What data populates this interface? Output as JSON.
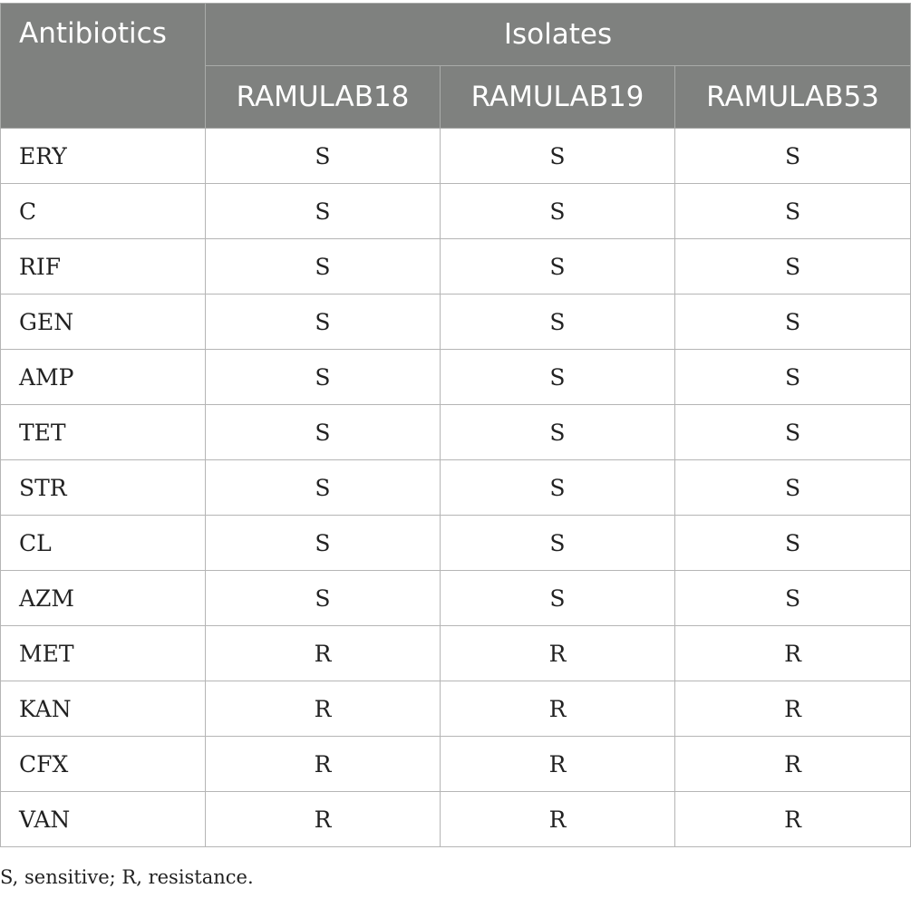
{
  "header": {
    "first_col": "Antibiotics",
    "group": "Isolates",
    "isolates": [
      "RAMULAB18",
      "RAMULAB19",
      "RAMULAB53"
    ]
  },
  "rows": [
    {
      "name": "ERY",
      "values": [
        "S",
        "S",
        "S"
      ]
    },
    {
      "name": "C",
      "values": [
        "S",
        "S",
        "S"
      ]
    },
    {
      "name": "RIF",
      "values": [
        "S",
        "S",
        "S"
      ]
    },
    {
      "name": "GEN",
      "values": [
        "S",
        "S",
        "S"
      ]
    },
    {
      "name": "AMP",
      "values": [
        "S",
        "S",
        "S"
      ]
    },
    {
      "name": "TET",
      "values": [
        "S",
        "S",
        "S"
      ]
    },
    {
      "name": "STR",
      "values": [
        "S",
        "S",
        "S"
      ]
    },
    {
      "name": "CL",
      "values": [
        "S",
        "S",
        "S"
      ]
    },
    {
      "name": "AZM",
      "values": [
        "S",
        "S",
        "S"
      ]
    },
    {
      "name": "MET",
      "values": [
        "R",
        "R",
        "R"
      ]
    },
    {
      "name": "KAN",
      "values": [
        "R",
        "R",
        "R"
      ]
    },
    {
      "name": "CFX",
      "values": [
        "R",
        "R",
        "R"
      ]
    },
    {
      "name": "VAN",
      "values": [
        "R",
        "R",
        "R"
      ]
    }
  ],
  "footnote": "S, sensitive; R, resistance.",
  "colors": {
    "header_bg": "#7f817f",
    "header_text": "#ffffff",
    "grid": "#b5b5b5"
  }
}
